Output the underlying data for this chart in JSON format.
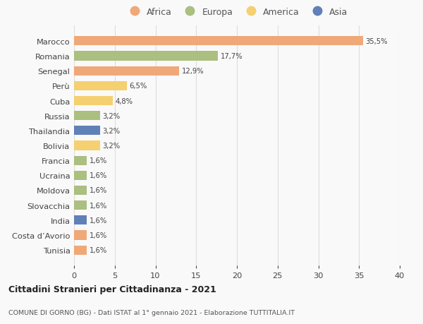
{
  "categories": [
    "Marocco",
    "Romania",
    "Senegal",
    "Perù",
    "Cuba",
    "Russia",
    "Thailandia",
    "Bolivia",
    "Francia",
    "Ucraina",
    "Moldova",
    "Slovacchia",
    "India",
    "Costa d’Avorio",
    "Tunisia"
  ],
  "values": [
    35.5,
    17.7,
    12.9,
    6.5,
    4.8,
    3.2,
    3.2,
    3.2,
    1.6,
    1.6,
    1.6,
    1.6,
    1.6,
    1.6,
    1.6
  ],
  "labels": [
    "35,5%",
    "17,7%",
    "12,9%",
    "6,5%",
    "4,8%",
    "3,2%",
    "3,2%",
    "3,2%",
    "1,6%",
    "1,6%",
    "1,6%",
    "1,6%",
    "1,6%",
    "1,6%",
    "1,6%"
  ],
  "continents": [
    "Africa",
    "Europa",
    "Africa",
    "America",
    "America",
    "Europa",
    "Asia",
    "America",
    "Europa",
    "Europa",
    "Europa",
    "Europa",
    "Asia",
    "Africa",
    "Africa"
  ],
  "continent_colors": {
    "Africa": "#F0A878",
    "Europa": "#AABF80",
    "America": "#F5D070",
    "Asia": "#6080B8"
  },
  "legend_order": [
    "Africa",
    "Europa",
    "America",
    "Asia"
  ],
  "title_bold": "Cittadini Stranieri per Cittadinanza - 2021",
  "subtitle": "COMUNE DI GORNO (BG) - Dati ISTAT al 1° gennaio 2021 - Elaborazione TUTTITALIA.IT",
  "xlim": [
    0,
    40
  ],
  "xticks": [
    0,
    5,
    10,
    15,
    20,
    25,
    30,
    35,
    40
  ],
  "bg_color": "#f9f9f9",
  "grid_color": "#dddddd"
}
